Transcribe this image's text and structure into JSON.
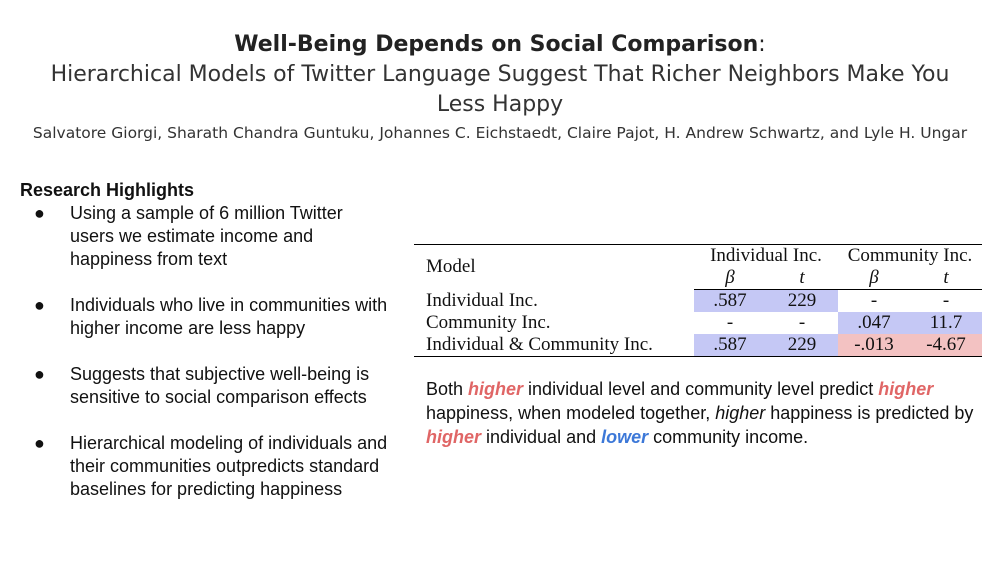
{
  "header": {
    "title_bold": "Well-Being Depends on Social Comparison",
    "title_colon": ":",
    "subtitle": "Hierarchical Models of Twitter Language Suggest That Richer Neighbors Make You Less Happy",
    "authors": "Salvatore Giorgi, Sharath Chandra Guntuku, Johannes C. Eichstaedt, Claire Pajot, H. Andrew Schwartz, and Lyle H. Ungar"
  },
  "highlights": {
    "title": "Research Highlights",
    "bullet": "●",
    "items": [
      "Using a sample of 6 million Twitter users we estimate income and happiness from text",
      "Individuals who live in communities with higher income are less happy",
      "Suggests that subjective well-being is sensitive to social comparison effects",
      "Hierarchical modeling of individuals and their communities outpredicts standard baselines for predicting happiness"
    ]
  },
  "table": {
    "model_header": "Model",
    "group1": "Individual Inc.",
    "group2": "Community Inc.",
    "beta": "β",
    "t": "t",
    "rows": [
      {
        "label": "Individual Inc.",
        "ind_beta": ".587",
        "ind_t": "229",
        "com_beta": "-",
        "com_t": "-"
      },
      {
        "label": "Community Inc.",
        "ind_beta": "-",
        "ind_t": "-",
        "com_beta": ".047",
        "com_t": "11.7"
      },
      {
        "label": "Individual & Community Inc.",
        "ind_beta": ".587",
        "ind_t": "229",
        "com_beta": "-.013",
        "com_t": "-4.67"
      }
    ],
    "colors": {
      "positive": "#c5c8f5",
      "negative": "#f3c2c2"
    }
  },
  "summary": {
    "p1": "Both ",
    "w_higher1": "higher",
    "p2": " individual level and community level predict ",
    "w_higher2": "higher",
    "p3": " happiness, when modeled together, ",
    "w_higher3": "higher",
    "p4": " happiness is predicted by ",
    "w_higher4": "higher",
    "p5": " individual and ",
    "w_lower": "lower",
    "p6": " community income.",
    "colors": {
      "higher": "#e06666",
      "lower": "#3c78d8"
    }
  }
}
